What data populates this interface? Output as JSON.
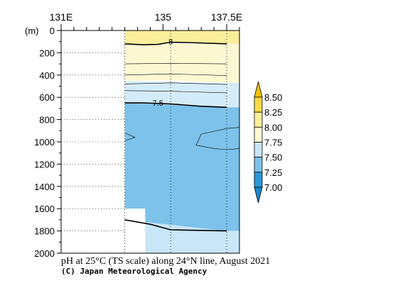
{
  "chart_data": {
    "type": "heatmap",
    "title": "pH at 25°C (TS scale) along 24°N line, August 2021",
    "credit": "(C) Japan Meteorological Agency",
    "depth_unit_label": "(m)",
    "x_tick_labels": [
      {
        "lon": 131,
        "label": "131E"
      },
      {
        "lon": 135,
        "label": "135"
      },
      {
        "lon": 137.5,
        "label": "137.5E"
      }
    ],
    "x_range": [
      131,
      138
    ],
    "y_range": [
      0,
      2000
    ],
    "y_ticks": [
      0,
      200,
      400,
      600,
      800,
      1000,
      1200,
      1400,
      1600,
      1800,
      2000
    ],
    "station_longitudes": [
      133.5,
      135.3,
      137.5
    ],
    "colorbar": {
      "ticks": [
        "8.50",
        "8.25",
        "8.00",
        "7.75",
        "7.50",
        "7.25",
        "7.00"
      ],
      "bands": [
        {
          "min": 8.25,
          "max": 8.5,
          "color": "#f7da45"
        },
        {
          "min": 8.0,
          "max": 8.25,
          "color": "#fbee9b"
        },
        {
          "min": 7.75,
          "max": 8.0,
          "color": "#fdf8d2"
        },
        {
          "min": 7.5,
          "max": 7.75,
          "color": "#c8e6f8"
        },
        {
          "min": 7.25,
          "max": 7.5,
          "color": "#7cc2ea"
        },
        {
          "min": 7.0,
          "max": 7.25,
          "color": "#2a9ad6"
        }
      ],
      "over_color": "#f3c400",
      "under_color": "#1a86c8"
    },
    "fill_layers": [
      {
        "band": "8.25-8.50",
        "color": "#fbee9b",
        "top": [
          [
            133.5,
            0
          ],
          [
            137.5,
            0
          ]
        ],
        "bottom": [
          [
            133.5,
            120
          ],
          [
            134.2,
            130
          ],
          [
            135.3,
            105
          ],
          [
            136.5,
            110
          ],
          [
            137.5,
            120
          ]
        ]
      },
      {
        "band": "8.00-8.25",
        "color": "#fdf8d2",
        "top": [
          [
            133.5,
            120
          ],
          [
            137.5,
            120
          ]
        ],
        "bottom": [
          [
            133.5,
            455
          ],
          [
            135.3,
            445
          ],
          [
            137.5,
            470
          ]
        ]
      },
      {
        "band": "7.75-8.00",
        "color": "#d4ecf9",
        "top": [
          [
            133.5,
            455
          ],
          [
            137.5,
            470
          ]
        ],
        "bottom": [
          [
            133.5,
            650
          ],
          [
            135.3,
            655
          ],
          [
            136.5,
            680
          ],
          [
            137.5,
            690
          ]
        ]
      },
      {
        "band": "7.50-7.75",
        "color": "#7cc2ea",
        "top": [
          [
            133.5,
            650
          ],
          [
            137.5,
            690
          ]
        ],
        "bottom": [
          [
            133.5,
            1700
          ],
          [
            135.3,
            1790
          ],
          [
            137.5,
            1800
          ]
        ]
      },
      {
        "band": "7.75-8.00",
        "color": "#c8e6f8",
        "top": [
          [
            133.5,
            1700
          ],
          [
            137.5,
            1800
          ]
        ],
        "bottom": [
          [
            133.5,
            2000
          ],
          [
            137.5,
            2000
          ]
        ]
      }
    ],
    "contours": [
      {
        "level": 8.0,
        "label": "8",
        "label_at": [
          135.3,
          100
        ],
        "bold": true,
        "points": [
          [
            133.5,
            120
          ],
          [
            134.2,
            128
          ],
          [
            134.8,
            125
          ],
          [
            135.3,
            105
          ],
          [
            136.0,
            108
          ],
          [
            137.5,
            120
          ]
        ]
      },
      {
        "level": 7.9,
        "label": "",
        "bold": false,
        "points": [
          [
            133.5,
            300
          ],
          [
            135.3,
            295
          ],
          [
            137.5,
            300
          ]
        ]
      },
      {
        "level": 7.85,
        "label": "",
        "bold": false,
        "points": [
          [
            133.5,
            400
          ],
          [
            135.3,
            390
          ],
          [
            137.5,
            405
          ]
        ]
      },
      {
        "level": 7.75,
        "label": "",
        "bold": false,
        "points": [
          [
            133.5,
            480
          ],
          [
            135.3,
            470
          ],
          [
            137.5,
            485
          ]
        ]
      },
      {
        "level": 7.7,
        "label": "",
        "bold": false,
        "points": [
          [
            133.5,
            540
          ],
          [
            135.3,
            545
          ],
          [
            137.5,
            560
          ]
        ]
      },
      {
        "level": 7.5,
        "label": "7.5",
        "label_at": [
          134.8,
          650
        ],
        "bold": true,
        "points": [
          [
            133.5,
            650
          ],
          [
            134.2,
            650
          ],
          [
            135.3,
            660
          ],
          [
            136.5,
            680
          ],
          [
            137.5,
            690
          ]
        ]
      },
      {
        "level": 7.45,
        "label": "",
        "bold": false,
        "points": [
          [
            138,
            870
          ],
          [
            137.5,
            880
          ],
          [
            136.5,
            930
          ],
          [
            136.3,
            1030
          ],
          [
            137.0,
            1060
          ],
          [
            137.5,
            1070
          ],
          [
            138,
            1060
          ]
        ]
      },
      {
        "level": 7.45,
        "label": "",
        "bold": false,
        "points": [
          [
            133.5,
            920
          ],
          [
            133.9,
            960
          ],
          [
            133.5,
            990
          ]
        ]
      },
      {
        "level": 7.5,
        "label": "",
        "bold": true,
        "points": [
          [
            133.5,
            1700
          ],
          [
            134.5,
            1740
          ],
          [
            135.3,
            1790
          ],
          [
            137.5,
            1800
          ]
        ]
      }
    ],
    "data_gaps": [
      {
        "x_range": [
          131,
          133.5
        ],
        "y_range": [
          0,
          1600
        ]
      },
      {
        "x_range": [
          131,
          134.3
        ],
        "y_range": [
          1600,
          2000
        ]
      }
    ]
  }
}
